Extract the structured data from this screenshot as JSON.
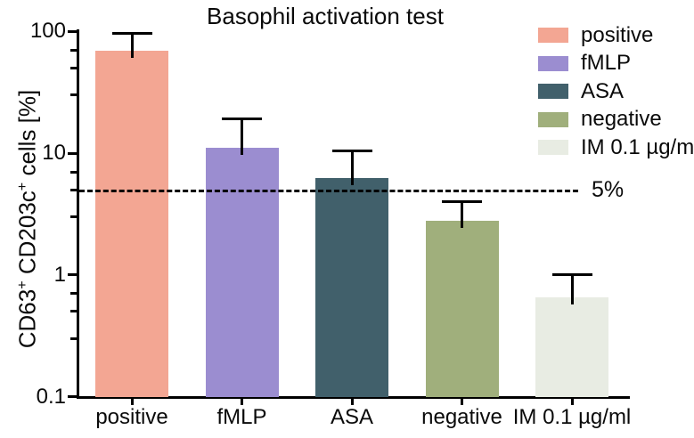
{
  "chart_data": {
    "type": "bar",
    "title": "Basophil activation test",
    "xlabel": "",
    "ylabel": "CD63+ CD203c+ cells [%]",
    "ylabel_parts": [
      {
        "t": "CD63"
      },
      {
        "t": "+",
        "sup": true
      },
      {
        "t": " CD203c"
      },
      {
        "t": "+",
        "sup": true
      },
      {
        "t": " cells [%]"
      }
    ],
    "yscale": "log",
    "ylim": [
      0.1,
      100
    ],
    "grid": false,
    "y_major_ticks": [
      {
        "value": 100,
        "label": "100"
      },
      {
        "value": 10,
        "label": "10"
      },
      {
        "value": 1,
        "label": "1"
      },
      {
        "value": 0.1,
        "label": "0.1"
      }
    ],
    "y_minor_tick_values": [
      70,
      50,
      30,
      7,
      5,
      3,
      0.7,
      0.5,
      0.3
    ],
    "categories": [
      "positive",
      "fMLP",
      "ASA",
      "negative",
      "IM 0.1 µg/ml"
    ],
    "values": [
      70,
      11,
      6.3,
      2.8,
      0.65
    ],
    "errors_upper": [
      97,
      19,
      10.5,
      4.0,
      1.0
    ],
    "bar_colors": [
      "#F3A693",
      "#9B8DD0",
      "#41606B",
      "#A0AF7C",
      "#E8ECE3"
    ],
    "axis_color": "#000000",
    "reference_line": {
      "value": 5,
      "label": "5%",
      "style": "dashed",
      "color": "#000000"
    },
    "legend": {
      "position": "top-right",
      "entries": [
        {
          "label": "positive",
          "color": "#F3A693"
        },
        {
          "label": "fMLP",
          "color": "#9B8DD0"
        },
        {
          "label": "ASA",
          "color": "#41606B"
        },
        {
          "label": "negative",
          "color": "#A0AF7C"
        },
        {
          "label": "IM 0.1 µg/ml",
          "color": "#E8ECE3"
        }
      ]
    }
  }
}
